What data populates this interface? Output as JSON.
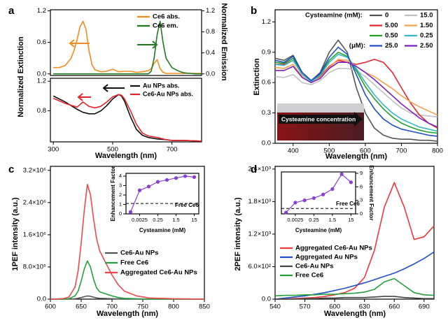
{
  "chart_data": [
    {
      "type": "line",
      "panel": "a",
      "ylabel": "Normalized Extinction",
      "y2label": "Normalized Emission",
      "x": [
        300,
        320,
        340,
        360,
        370,
        380,
        390,
        400,
        410,
        420,
        430,
        440,
        460,
        480,
        500,
        520,
        540,
        560,
        580,
        600,
        620,
        630,
        640,
        650,
        660,
        670,
        680,
        700,
        720,
        740,
        760,
        780,
        800
      ],
      "xlim": [
        290,
        800
      ],
      "ylim": [
        -0.03,
        1.22
      ],
      "yticks": [
        {
          "value": 0,
          "label": "0.0"
        },
        0.6,
        1.2
      ],
      "y2lim": [
        -0.03,
        1.22
      ],
      "y2ticks": [
        {
          "value": 0,
          "label": "0.0"
        },
        0.4,
        0.8,
        1.2
      ],
      "series": [
        {
          "name": "Ce6 abs.",
          "color": "#f28c1e",
          "values": [
            0.12,
            0.12,
            0.16,
            0.3,
            0.45,
            0.65,
            0.9,
            1.0,
            0.85,
            0.45,
            0.18,
            0.08,
            0.04,
            0.05,
            0.09,
            0.04,
            0.05,
            0.05,
            0.03,
            0.04,
            0.06,
            0.1,
            0.2,
            0.27,
            0.1,
            0.03,
            0.01,
            0.01,
            0.01,
            0.01,
            0.01,
            0.01,
            0.01
          ]
        },
        {
          "name": "Ce6 em.",
          "color": "#1e7a1e",
          "axis": "y2",
          "values": [
            0,
            0,
            0,
            0,
            0,
            0,
            0,
            0,
            0,
            0,
            0,
            0,
            0,
            0,
            0,
            0,
            0,
            0,
            0,
            0,
            0,
            0.05,
            0.3,
            0.75,
            1.0,
            0.6,
            0.3,
            0.12,
            0.06,
            0.02,
            0.01,
            0,
            0
          ]
        }
      ]
    },
    {
      "type": "line",
      "xlabel": "Wavelength (nm)",
      "x": [
        300,
        340,
        380,
        400,
        420,
        440,
        460,
        480,
        500,
        520,
        530,
        540,
        560,
        580,
        600,
        620,
        650,
        680,
        700,
        740,
        800
      ],
      "xlim": [
        290,
        800
      ],
      "xticks": [
        300,
        500,
        700
      ],
      "ylim": [
        0.38,
        1.24
      ],
      "yticks": [
        0.8,
        1.2
      ],
      "series": [
        {
          "name": "Au NPs abs.",
          "color": "#111111",
          "values": [
            1.0,
            0.92,
            0.82,
            0.78,
            0.76,
            0.76,
            0.8,
            0.87,
            0.96,
            1.02,
            1.0,
            0.93,
            0.72,
            0.55,
            0.47,
            0.44,
            0.42,
            0.41,
            0.4,
            0.4,
            0.39
          ]
        },
        {
          "name": "Ce6-Au NPs abs.",
          "color": "#e3262b",
          "values": [
            0.97,
            0.9,
            0.85,
            0.92,
            0.86,
            0.84,
            0.86,
            0.92,
            0.99,
            1.02,
            1.01,
            0.96,
            0.8,
            0.62,
            0.5,
            0.46,
            0.44,
            0.41,
            0.4,
            0.4,
            0.39
          ]
        }
      ]
    },
    {
      "type": "line",
      "panel": "b",
      "xlabel": "Wavelength (nm)",
      "ylabel": "Extinction",
      "legend_title": "Cysteamine (mM):",
      "legend_subtitle": "(μM):",
      "inset_text": "Cysteamine concentration",
      "x": [
        350,
        375,
        400,
        425,
        450,
        475,
        500,
        525,
        550,
        575,
        600,
        625,
        650,
        675,
        700,
        725,
        750,
        775,
        800
      ],
      "xlim": [
        350,
        800
      ],
      "xticks": [
        400,
        500,
        600,
        700,
        800
      ],
      "ylim": [
        0,
        1.32
      ],
      "yticks": [
        {
          "value": 0,
          "label": "0.0"
        },
        0.3,
        0.6,
        0.9,
        1.2
      ],
      "series": [
        {
          "name": "0",
          "color": "#555555",
          "values": [
            0.84,
            0.82,
            0.87,
            0.7,
            0.62,
            0.7,
            0.9,
            1.02,
            0.9,
            0.55,
            0.3,
            0.15,
            0.08,
            0.05,
            0.04,
            0.04,
            0.03,
            0.03,
            0.02
          ]
        },
        {
          "name": "15.0",
          "color": "#c0c0c0",
          "values": [
            0.66,
            0.65,
            0.68,
            0.6,
            0.58,
            0.62,
            0.7,
            0.74,
            0.74,
            0.72,
            0.66,
            0.58,
            0.5,
            0.42,
            0.35,
            0.3,
            0.28,
            0.27,
            0.26
          ]
        },
        {
          "name": "5.00",
          "color": "#e8272d",
          "values": [
            0.78,
            0.78,
            0.82,
            0.68,
            0.62,
            0.66,
            0.76,
            0.82,
            0.8,
            0.78,
            0.8,
            0.83,
            0.8,
            0.7,
            0.55,
            0.4,
            0.28,
            0.2,
            0.15
          ]
        },
        {
          "name": "1.50",
          "color": "#f6a24c",
          "values": [
            0.75,
            0.74,
            0.78,
            0.66,
            0.6,
            0.65,
            0.75,
            0.83,
            0.82,
            0.76,
            0.7,
            0.66,
            0.6,
            0.54,
            0.47,
            0.41,
            0.36,
            0.32,
            0.28
          ]
        },
        {
          "name": "0.50",
          "color": "#22a02c",
          "values": [
            0.8,
            0.79,
            0.84,
            0.7,
            0.62,
            0.68,
            0.82,
            0.9,
            0.86,
            0.72,
            0.56,
            0.44,
            0.34,
            0.26,
            0.2,
            0.16,
            0.13,
            0.11,
            0.1
          ]
        },
        {
          "name": "0.25",
          "color": "#35b8c4",
          "values": [
            0.78,
            0.77,
            0.82,
            0.68,
            0.61,
            0.67,
            0.8,
            0.88,
            0.85,
            0.74,
            0.6,
            0.48,
            0.38,
            0.3,
            0.24,
            0.2,
            0.16,
            0.14,
            0.12
          ]
        },
        {
          "name": "25.0",
          "color": "#1f4fc4",
          "values": [
            0.82,
            0.8,
            0.86,
            0.7,
            0.62,
            0.69,
            0.85,
            0.95,
            0.88,
            0.68,
            0.48,
            0.34,
            0.24,
            0.18,
            0.14,
            0.12,
            0.1,
            0.08,
            0.07
          ]
        },
        {
          "name": "2.50",
          "color": "#7b22c2",
          "values": [
            0.72,
            0.72,
            0.76,
            0.65,
            0.6,
            0.64,
            0.74,
            0.8,
            0.8,
            0.76,
            0.7,
            0.63,
            0.55,
            0.47,
            0.39,
            0.32,
            0.25,
            0.2,
            0.16
          ]
        }
      ]
    },
    {
      "type": "line",
      "panel": "c",
      "xlabel": "Wavelength (nm)",
      "ylabel": "1PEF intensity (a.u.)",
      "x": [
        600,
        620,
        630,
        640,
        645,
        650,
        655,
        660,
        665,
        670,
        675,
        680,
        690,
        700,
        710,
        720,
        740,
        760,
        800,
        850
      ],
      "xlim": [
        600,
        850
      ],
      "xticks": [
        600,
        650,
        700,
        750,
        800,
        850
      ],
      "ylim": [
        0,
        3300000
      ],
      "yticks": [
        {
          "value": 0,
          "label": "0.0"
        },
        {
          "value": 800000,
          "label": "8.0×10⁵"
        },
        {
          "value": 1600000,
          "label": "1.6×10⁶"
        },
        {
          "value": 2400000,
          "label": "2.4×10⁶"
        },
        {
          "value": 3200000,
          "label": "3.2×10⁶"
        }
      ],
      "series": [
        {
          "name": "Ce6-Au NPs",
          "color": "#555555",
          "values": [
            0,
            0,
            0,
            10000,
            20000,
            40000,
            60000,
            80000,
            70000,
            50000,
            30000,
            20000,
            15000,
            10000,
            5000,
            0,
            0,
            0,
            0,
            0
          ]
        },
        {
          "name": "Free Ce6",
          "color": "#22a03c",
          "values": [
            0,
            0,
            10000,
            80000,
            200000,
            450000,
            750000,
            950000,
            800000,
            500000,
            280000,
            180000,
            130000,
            80000,
            40000,
            20000,
            10000,
            0,
            0,
            0
          ]
        },
        {
          "name": "Aggregated Ce6-Au NPs",
          "color": "#f0484a",
          "values": [
            0,
            10000,
            50000,
            300000,
            700000,
            1400000,
            2200000,
            2850000,
            2600000,
            2000000,
            1500000,
            1200000,
            900000,
            600000,
            360000,
            200000,
            80000,
            30000,
            10000,
            0
          ]
        }
      ]
    },
    {
      "type": "line",
      "markers": true,
      "xlabel": "Cysteamine (mM)",
      "ylabel": "Enhancement Factor",
      "categories": [
        null,
        "0.0025",
        null,
        "0.25",
        null,
        "1.5",
        null,
        "15"
      ],
      "ylim": [
        0,
        4.3
      ],
      "yticks": [
        0,
        1,
        2,
        3,
        4
      ],
      "reference": {
        "label": "Free Ce6",
        "value": 1.1
      },
      "series": [
        {
          "name": "Enhancement Factor",
          "color": "#8a3fd0",
          "values": [
            0.2,
            2.5,
            2.9,
            3.4,
            3.6,
            3.8,
            4.0,
            3.9
          ]
        }
      ]
    },
    {
      "type": "line",
      "panel": "d",
      "xlabel": "Wavelength (nm)",
      "ylabel": "2PEF intensity (a.u.)",
      "x": [
        540,
        550,
        560,
        570,
        580,
        590,
        600,
        610,
        620,
        630,
        640,
        650,
        660,
        670,
        680,
        690,
        700
      ],
      "xlim": [
        540,
        700
      ],
      "xticks": [
        540,
        570,
        600,
        630,
        660,
        690
      ],
      "ylim": [
        0,
        2450
      ],
      "yticks": [
        {
          "value": 0,
          "label": "0.0"
        },
        {
          "value": 600,
          "label": "6.0×10²"
        },
        {
          "value": 1200,
          "label": "1.2×10³"
        },
        {
          "value": 1800,
          "label": "1.8×10³"
        },
        {
          "value": 2400,
          "label": "2.4×10³"
        }
      ],
      "series": [
        {
          "name": "Aggregated Ce6-Au NPs",
          "color": "#f0373a",
          "values": [
            0,
            0,
            10,
            20,
            30,
            50,
            80,
            120,
            200,
            400,
            900,
            1700,
            2150,
            1700,
            1100,
            1150,
            1350
          ]
        },
        {
          "name": "Aggregated Au NPs",
          "color": "#1f4fc4",
          "values": [
            0,
            20,
            40,
            60,
            90,
            120,
            160,
            200,
            250,
            300,
            360,
            420,
            480,
            560,
            650,
            750,
            870
          ]
        },
        {
          "name": "Ce6-Au NPs",
          "color": "#444444",
          "values": [
            0,
            0,
            0,
            10,
            10,
            20,
            20,
            30,
            30,
            30,
            40,
            50,
            50,
            30,
            20,
            10,
            10
          ]
        },
        {
          "name": "Free Ce6",
          "color": "#22a03c",
          "values": [
            60,
            70,
            70,
            80,
            80,
            90,
            90,
            100,
            110,
            130,
            180,
            320,
            380,
            250,
            120,
            80,
            70
          ]
        }
      ]
    },
    {
      "type": "line",
      "markers": true,
      "xlabel": "Cysteamine (mM)",
      "y2label": "Enhancement Factor",
      "categories": [
        null,
        "0.0025",
        null,
        "0.25",
        null,
        "1.5",
        null,
        "15"
      ],
      "y2lim": [
        0,
        9.3
      ],
      "y2ticks": [
        0,
        3,
        6,
        9
      ],
      "reference": {
        "label": "Free Ce6",
        "value": 1.2
      },
      "series": [
        {
          "name": "Enhancement Factor",
          "color": "#8a3fd0",
          "axis": "y2",
          "values": [
            0.3,
            2.5,
            3.0,
            3.5,
            4.3,
            5.5,
            8.8,
            7.0
          ]
        }
      ]
    }
  ]
}
